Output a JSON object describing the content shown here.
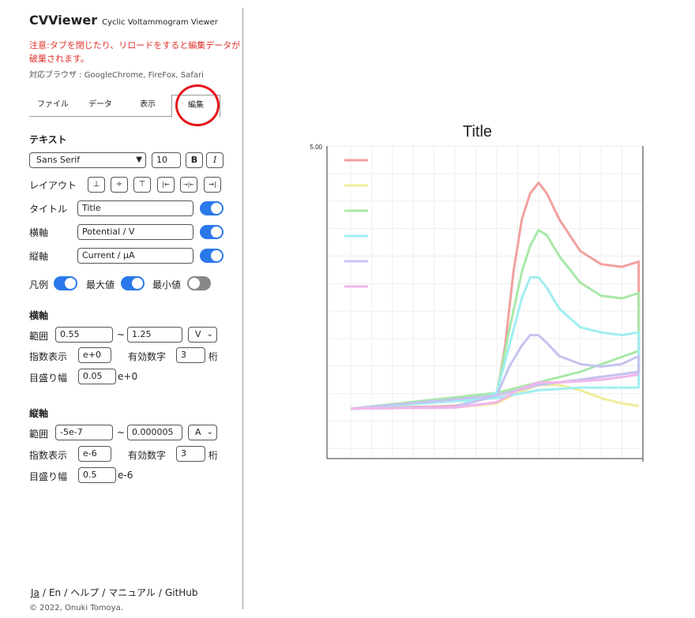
{
  "app": {
    "title": "CVViewer",
    "subtitle": "Cyclic Voltammogram Viewer",
    "warning": "注意:タブを閉じたり、リロードをすると編集データが破棄されます。",
    "browsers": "対応ブラウザ : GoogleChrome, FireFox, Safari"
  },
  "tabs": [
    {
      "label": "ファイル"
    },
    {
      "label": "データ"
    },
    {
      "label": "表示"
    },
    {
      "label": "編集",
      "active": true
    }
  ],
  "text_section": {
    "title": "テキスト",
    "font": "Sans Serif",
    "font_size": "10",
    "bold": "B",
    "italic": "I",
    "layout_label": "レイアウト",
    "layout_buttons": [
      "⊥",
      "÷",
      "⊤",
      "|←",
      "→|←",
      "→|"
    ],
    "title_label": "タイトル",
    "title_value": "Title",
    "xaxis_label": "横軸",
    "xaxis_value": "Potential / V",
    "yaxis_label": "縦軸",
    "yaxis_value": "Current / μA",
    "legend_label": "凡例",
    "max_label": "最大値",
    "min_label": "最小値",
    "toggles": {
      "title": true,
      "xaxis": true,
      "yaxis": true,
      "legend": true,
      "max": true,
      "min": false
    }
  },
  "x_section": {
    "title": "横軸",
    "range_label": "範囲",
    "range_min": "0.55",
    "tilde": "~",
    "range_max": "1.25",
    "unit": "V",
    "exp_label": "指数表示",
    "exp_value": "e+0",
    "sig_label": "有効数字",
    "sig_value": "3",
    "digits_label": "桁",
    "step_label": "目盛り幅",
    "step_value": "0.05",
    "step_suffix": "e+0"
  },
  "y_section": {
    "title": "縦軸",
    "range_label": "範囲",
    "range_min": "-5e-7",
    "tilde": "~",
    "range_max": "0.000005",
    "unit": "A",
    "exp_label": "指数表示",
    "exp_value": "e-6",
    "sig_label": "有効数字",
    "sig_value": "3",
    "digits_label": "桁",
    "step_label": "目盛り幅",
    "step_value": "0.5",
    "step_suffix": "e-6"
  },
  "footer": {
    "links": [
      "Ja",
      "En",
      "ヘルプ",
      "マニュアル",
      "GitHub"
    ],
    "copyright": "© 2022, Onuki Tomoya."
  },
  "chart_data": {
    "type": "line",
    "title": "Title",
    "ylim_max_label": "5.00",
    "xlim": [
      0.55,
      1.25
    ],
    "ylim": [
      -0.5,
      5.0
    ],
    "series": [
      {
        "color": "#f2a0a0",
        "x": [
          0.55,
          0.8,
          0.9,
          0.92,
          0.94,
          0.96,
          0.98,
          1.0,
          1.02,
          1.05,
          1.1,
          1.15,
          1.2,
          1.24,
          1.24,
          1.24,
          1.1,
          1.0,
          0.9,
          0.8,
          0.55
        ],
        "y": [
          0,
          0.03,
          0.25,
          1.2,
          2.6,
          3.6,
          4.1,
          4.3,
          4.1,
          3.6,
          3.0,
          2.75,
          2.7,
          2.8,
          1.5,
          0.7,
          0.55,
          0.45,
          0.25,
          0.05,
          0
        ]
      },
      {
        "color": "#f0ec9a",
        "x": [
          0.55,
          0.8,
          0.9,
          0.95,
          1.0,
          1.05,
          1.1,
          1.15,
          1.2,
          1.24
        ],
        "y": [
          0,
          0.02,
          0.1,
          0.3,
          0.45,
          0.45,
          0.35,
          0.2,
          0.1,
          0.05
        ]
      },
      {
        "color": "#a8e8a8",
        "x": [
          0.55,
          0.8,
          0.9,
          0.93,
          0.96,
          0.98,
          1.0,
          1.02,
          1.05,
          1.1,
          1.15,
          1.2,
          1.24,
          1.24,
          1.1,
          1.0,
          0.9,
          0.55
        ],
        "y": [
          0,
          0.03,
          0.3,
          1.5,
          2.6,
          3.1,
          3.4,
          3.3,
          2.9,
          2.4,
          2.15,
          2.1,
          2.2,
          1.1,
          0.7,
          0.5,
          0.3,
          0
        ]
      },
      {
        "color": "#a0eef0",
        "x": [
          0.55,
          0.8,
          0.9,
          0.93,
          0.96,
          0.98,
          1.0,
          1.02,
          1.05,
          1.1,
          1.15,
          1.2,
          1.24,
          1.24,
          1.1,
          1.0,
          0.9,
          0.55
        ],
        "y": [
          0,
          0.03,
          0.3,
          1.2,
          2.1,
          2.5,
          2.5,
          2.3,
          1.9,
          1.55,
          1.45,
          1.4,
          1.45,
          0.4,
          0.4,
          0.35,
          0.2,
          0
        ]
      },
      {
        "color": "#c4c4f0",
        "x": [
          0.55,
          0.8,
          0.9,
          0.93,
          0.96,
          0.98,
          1.0,
          1.02,
          1.05,
          1.1,
          1.15,
          1.2,
          1.24,
          1.24,
          1.1,
          1.0,
          0.9,
          0.55
        ],
        "y": [
          0,
          0.03,
          0.25,
          0.8,
          1.2,
          1.4,
          1.4,
          1.25,
          1.0,
          0.85,
          0.8,
          0.85,
          1.0,
          0.7,
          0.55,
          0.45,
          0.25,
          0
        ]
      },
      {
        "color": "#f0b6ec",
        "x": [
          0.55,
          0.8,
          0.9,
          0.95,
          1.0,
          1.05,
          1.1,
          1.15,
          1.2,
          1.24
        ],
        "y": [
          0,
          0.02,
          0.12,
          0.35,
          0.5,
          0.5,
          0.52,
          0.55,
          0.6,
          0.65
        ]
      }
    ]
  }
}
